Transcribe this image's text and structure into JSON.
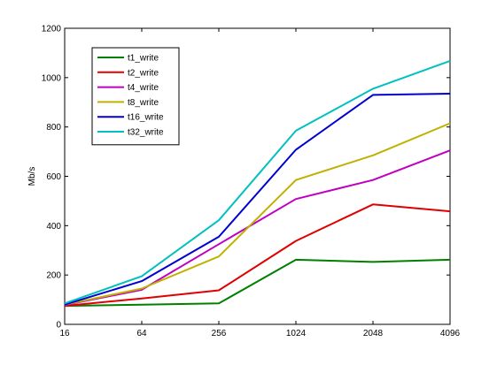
{
  "chart_data": {
    "type": "line",
    "title": "",
    "xlabel": "",
    "ylabel": "Mb/s",
    "categories": [
      "16",
      "64",
      "256",
      "1024",
      "2048",
      "4096"
    ],
    "ylim": [
      0,
      1200
    ],
    "yticks": [
      0,
      200,
      400,
      600,
      800,
      1000,
      1200
    ],
    "grid": false,
    "legend_position": "top-left",
    "series": [
      {
        "name": "t1_write",
        "color": "#008000",
        "values": [
          75,
          80,
          85,
          262,
          253,
          262
        ]
      },
      {
        "name": "t2_write",
        "color": "#e00000",
        "values": [
          75,
          105,
          138,
          338,
          486,
          458
        ]
      },
      {
        "name": "t4_write",
        "color": "#c000c0",
        "values": [
          78,
          140,
          325,
          508,
          585,
          705
        ]
      },
      {
        "name": "t8_write",
        "color": "#c0b000",
        "values": [
          80,
          145,
          275,
          585,
          685,
          815
        ]
      },
      {
        "name": "t16_write",
        "color": "#0000d0",
        "values": [
          80,
          175,
          355,
          708,
          930,
          935
        ]
      },
      {
        "name": "t32_write",
        "color": "#00c0c0",
        "values": [
          85,
          195,
          422,
          785,
          955,
          1068
        ]
      }
    ]
  }
}
